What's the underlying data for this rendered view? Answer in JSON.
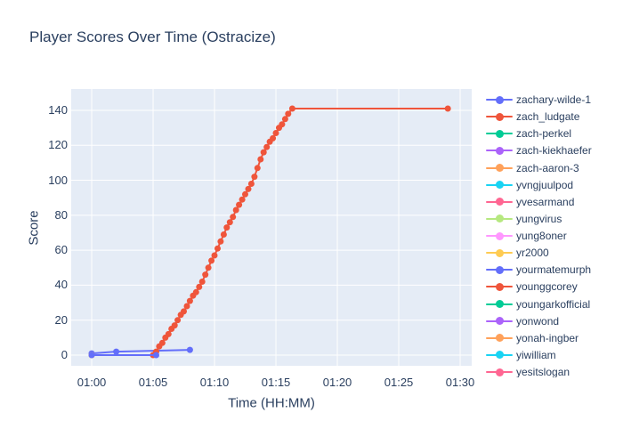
{
  "chart_data": {
    "type": "line",
    "title": "Player Scores Over Time (Ostracize)",
    "xlabel": "Time (HH:MM)",
    "ylabel": "Score",
    "x_ticks": [
      "01:00",
      "01:05",
      "01:10",
      "01:15",
      "01:20",
      "01:25",
      "01:30"
    ],
    "y_ticks": [
      0,
      20,
      40,
      60,
      80,
      100,
      120,
      140
    ],
    "x_range_minutes": [
      58.33,
      90.94
    ],
    "y_range": [
      -6.1,
      152.2
    ],
    "grid": true,
    "legend_position": "right",
    "plot_bg_color": "#e5ecf6",
    "grid_color": "#ffffff",
    "text_color": "#2a3f5f",
    "series": [
      {
        "name": "zachary-wilde-1",
        "color": "#636efa",
        "points": [
          [
            "01:00:00",
            1
          ],
          [
            "01:02:00",
            2
          ],
          [
            "01:08:00",
            3
          ]
        ]
      },
      {
        "name": "zach_ludgate",
        "color": "#ef553b",
        "points": [
          [
            "01:05:00",
            0
          ],
          [
            "01:05:15",
            2
          ],
          [
            "01:05:30",
            5
          ],
          [
            "01:05:45",
            7
          ],
          [
            "01:06:00",
            10
          ],
          [
            "01:06:15",
            12
          ],
          [
            "01:06:30",
            15
          ],
          [
            "01:06:45",
            17
          ],
          [
            "01:07:00",
            20
          ],
          [
            "01:07:15",
            23
          ],
          [
            "01:07:30",
            25
          ],
          [
            "01:07:45",
            28
          ],
          [
            "01:08:00",
            31
          ],
          [
            "01:08:15",
            34
          ],
          [
            "01:08:30",
            36
          ],
          [
            "01:08:45",
            39
          ],
          [
            "01:09:00",
            42
          ],
          [
            "01:09:15",
            46
          ],
          [
            "01:09:30",
            50
          ],
          [
            "01:09:45",
            54
          ],
          [
            "01:10:00",
            57
          ],
          [
            "01:10:15",
            61
          ],
          [
            "01:10:30",
            65
          ],
          [
            "01:10:45",
            69
          ],
          [
            "01:11:00",
            73
          ],
          [
            "01:11:15",
            76
          ],
          [
            "01:11:30",
            79
          ],
          [
            "01:11:45",
            83
          ],
          [
            "01:12:00",
            86
          ],
          [
            "01:12:15",
            89
          ],
          [
            "01:12:30",
            92
          ],
          [
            "01:12:45",
            95
          ],
          [
            "01:13:00",
            98
          ],
          [
            "01:13:15",
            102
          ],
          [
            "01:13:30",
            107
          ],
          [
            "01:13:45",
            112
          ],
          [
            "01:14:00",
            116
          ],
          [
            "01:14:15",
            119
          ],
          [
            "01:14:30",
            122
          ],
          [
            "01:14:45",
            124
          ],
          [
            "01:15:00",
            127
          ],
          [
            "01:15:15",
            130
          ],
          [
            "01:15:30",
            132
          ],
          [
            "01:15:45",
            135
          ],
          [
            "01:16:00",
            138
          ],
          [
            "01:16:20",
            141
          ],
          [
            "01:29:00",
            141
          ]
        ]
      },
      {
        "name": "zach-perkel",
        "color": "#00cc96",
        "points": []
      },
      {
        "name": "zach-kiekhaefer",
        "color": "#ab63fa",
        "points": []
      },
      {
        "name": "zach-aaron-3",
        "color": "#ffa15a",
        "points": [
          [
            "01:00:00",
            0
          ]
        ]
      },
      {
        "name": "yvngjuulpod",
        "color": "#19d3f3",
        "points": []
      },
      {
        "name": "yvesarmand",
        "color": "#ff6692",
        "points": []
      },
      {
        "name": "yungvirus",
        "color": "#b6e880",
        "points": []
      },
      {
        "name": "yung8oner",
        "color": "#ff97ff",
        "points": []
      },
      {
        "name": "yr2000",
        "color": "#fecb52",
        "points": [
          [
            "01:00:00",
            0
          ]
        ]
      },
      {
        "name": "yourmatemurph",
        "color": "#636efa",
        "points": [
          [
            "01:00:00",
            0
          ],
          [
            "01:05:15",
            0
          ]
        ]
      },
      {
        "name": "younggcorey",
        "color": "#ef553b",
        "points": []
      },
      {
        "name": "youngarkofficial",
        "color": "#00cc96",
        "points": []
      },
      {
        "name": "yonwond",
        "color": "#ab63fa",
        "points": []
      },
      {
        "name": "yonah-ingber",
        "color": "#ffa15a",
        "points": []
      },
      {
        "name": "yiwilliam",
        "color": "#19d3f3",
        "points": []
      },
      {
        "name": "yesitslogan",
        "color": "#ff6692",
        "points": []
      }
    ]
  }
}
